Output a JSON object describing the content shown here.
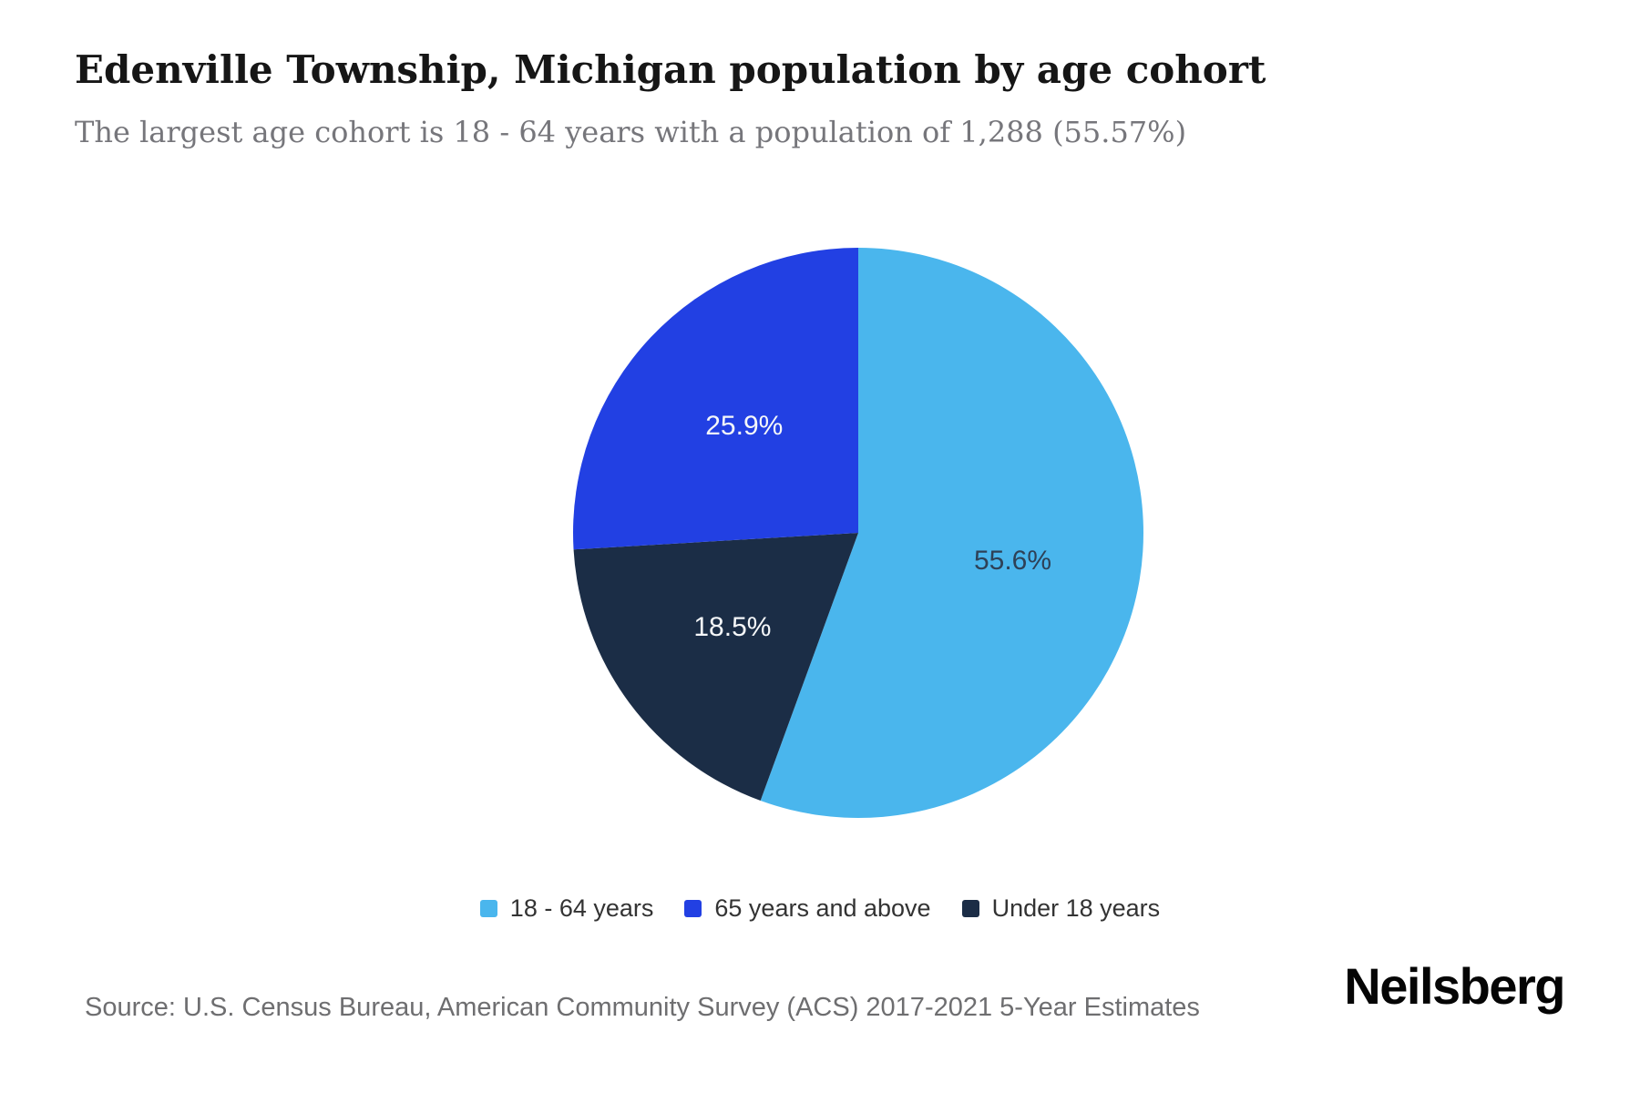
{
  "header": {
    "title": "Edenville Township, Michigan population by age cohort",
    "subtitle": "The largest age cohort is 18 - 64 years with a population of 1,288 (55.57%)"
  },
  "chart_data": {
    "type": "pie",
    "title": "Edenville Township, Michigan population by age cohort",
    "unit": "percent of total population",
    "start_angle_deg": 0,
    "direction": "clockwise",
    "slices": [
      {
        "label": "18 - 64 years",
        "value": 55.57,
        "display_label": "55.6%",
        "population": 1288,
        "color": "#4AB6ED",
        "label_color": "#2E4157"
      },
      {
        "label": "Under 18 years",
        "value": 18.5,
        "display_label": "18.5%",
        "color": "#1B2D46",
        "label_color": "#F5F7F9"
      },
      {
        "label": "65 years and above",
        "value": 25.93,
        "display_label": "25.9%",
        "color": "#2240E3",
        "label_color": "#F5F7F9"
      }
    ],
    "legend_position": "bottom",
    "legend_order": [
      "18 - 64 years",
      "65 years and above",
      "Under 18 years"
    ]
  },
  "footer": {
    "source": "Source: U.S. Census Bureau, American Community Survey (ACS) 2017-2021 5-Year Estimates",
    "brand": "Neilsberg"
  }
}
